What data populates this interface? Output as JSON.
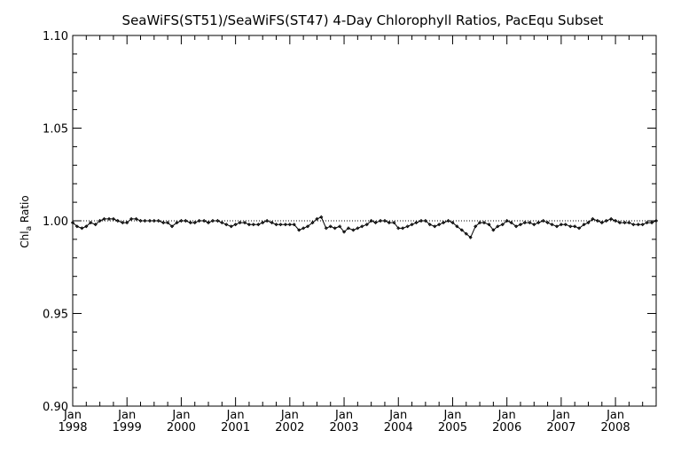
{
  "chart_data": {
    "type": "line",
    "title": "SeaWiFS(ST51)/SeaWiFS(ST47) 4-Day Chlorophyll Ratios, PacEqu Subset",
    "ylabel_main": "Chl",
    "ylabel_sub": "a",
    "ylabel_tail": " Ratio",
    "ylim": [
      0.9,
      1.1
    ],
    "xlim": [
      1998.0,
      2008.75
    ],
    "reference_line": 1.0,
    "y_ticks": [
      "0.90",
      "0.95",
      "1.00",
      "1.05",
      "1.10"
    ],
    "x_ticks": [
      {
        "month": "Jan",
        "year": "1998"
      },
      {
        "month": "Jan",
        "year": "1999"
      },
      {
        "month": "Jan",
        "year": "2000"
      },
      {
        "month": "Jan",
        "year": "2001"
      },
      {
        "month": "Jan",
        "year": "2002"
      },
      {
        "month": "Jan",
        "year": "2003"
      },
      {
        "month": "Jan",
        "year": "2004"
      },
      {
        "month": "Jan",
        "year": "2005"
      },
      {
        "month": "Jan",
        "year": "2006"
      },
      {
        "month": "Jan",
        "year": "2007"
      },
      {
        "month": "Jan",
        "year": "2008"
      }
    ],
    "series": [
      {
        "x": [
          1998.0,
          1998.08,
          1998.17,
          1998.25,
          1998.33,
          1998.42,
          1998.5,
          1998.58,
          1998.67,
          1998.75,
          1998.83,
          1998.92,
          1999.0,
          1999.08,
          1999.17,
          1999.25,
          1999.33,
          1999.42,
          1999.5,
          1999.58,
          1999.67,
          1999.75,
          1999.83,
          1999.92,
          2000.0,
          2000.08,
          2000.17,
          2000.25,
          2000.33,
          2000.42,
          2000.5,
          2000.58,
          2000.67,
          2000.75,
          2000.83,
          2000.92,
          2001.0,
          2001.08,
          2001.17,
          2001.25,
          2001.33,
          2001.42,
          2001.5,
          2001.58,
          2001.67,
          2001.75,
          2001.83,
          2001.92,
          2002.0,
          2002.08,
          2002.17,
          2002.25,
          2002.33,
          2002.42,
          2002.5,
          2002.58,
          2002.67,
          2002.75,
          2002.83,
          2002.92,
          2003.0,
          2003.08,
          2003.17,
          2003.25,
          2003.33,
          2003.42,
          2003.5,
          2003.58,
          2003.67,
          2003.75,
          2003.83,
          2003.92,
          2004.0,
          2004.08,
          2004.17,
          2004.25,
          2004.33,
          2004.42,
          2004.5,
          2004.58,
          2004.67,
          2004.75,
          2004.83,
          2004.92,
          2005.0,
          2005.08,
          2005.17,
          2005.25,
          2005.33,
          2005.42,
          2005.5,
          2005.58,
          2005.67,
          2005.75,
          2005.83,
          2005.92,
          2006.0,
          2006.08,
          2006.17,
          2006.25,
          2006.33,
          2006.42,
          2006.5,
          2006.58,
          2006.67,
          2006.75,
          2006.83,
          2006.92,
          2007.0,
          2007.08,
          2007.17,
          2007.25,
          2007.33,
          2007.42,
          2007.5,
          2007.58,
          2007.67,
          2007.75,
          2007.83,
          2007.92,
          2008.0,
          2008.08,
          2008.17,
          2008.25,
          2008.33,
          2008.42,
          2008.5,
          2008.58,
          2008.67,
          2008.75
        ],
        "values": [
          0.999,
          0.997,
          0.996,
          0.997,
          0.999,
          0.998,
          1.0,
          1.001,
          1.001,
          1.001,
          1.0,
          0.999,
          0.999,
          1.001,
          1.001,
          1.0,
          1.0,
          1.0,
          1.0,
          1.0,
          0.999,
          0.999,
          0.997,
          0.999,
          1.0,
          1.0,
          0.999,
          0.999,
          1.0,
          1.0,
          0.999,
          1.0,
          1.0,
          0.999,
          0.998,
          0.997,
          0.998,
          0.999,
          0.999,
          0.998,
          0.998,
          0.998,
          0.999,
          1.0,
          0.999,
          0.998,
          0.998,
          0.998,
          0.998,
          0.998,
          0.995,
          0.996,
          0.997,
          0.999,
          1.001,
          1.002,
          0.996,
          0.997,
          0.996,
          0.997,
          0.994,
          0.996,
          0.995,
          0.996,
          0.997,
          0.998,
          1.0,
          0.999,
          1.0,
          1.0,
          0.999,
          0.999,
          0.996,
          0.996,
          0.997,
          0.998,
          0.999,
          1.0,
          1.0,
          0.998,
          0.997,
          0.998,
          0.999,
          1.0,
          0.999,
          0.997,
          0.995,
          0.993,
          0.991,
          0.997,
          0.999,
          0.999,
          0.998,
          0.995,
          0.997,
          0.998,
          1.0,
          0.999,
          0.997,
          0.998,
          0.999,
          0.999,
          0.998,
          0.999,
          1.0,
          0.999,
          0.998,
          0.997,
          0.998,
          0.998,
          0.997,
          0.997,
          0.996,
          0.998,
          0.999,
          1.001,
          1.0,
          0.999,
          1.0,
          1.001,
          1.0,
          0.999,
          0.999,
          0.999,
          0.998,
          0.998,
          0.998,
          0.999,
          0.999,
          1.0
        ]
      }
    ],
    "grid": false
  }
}
